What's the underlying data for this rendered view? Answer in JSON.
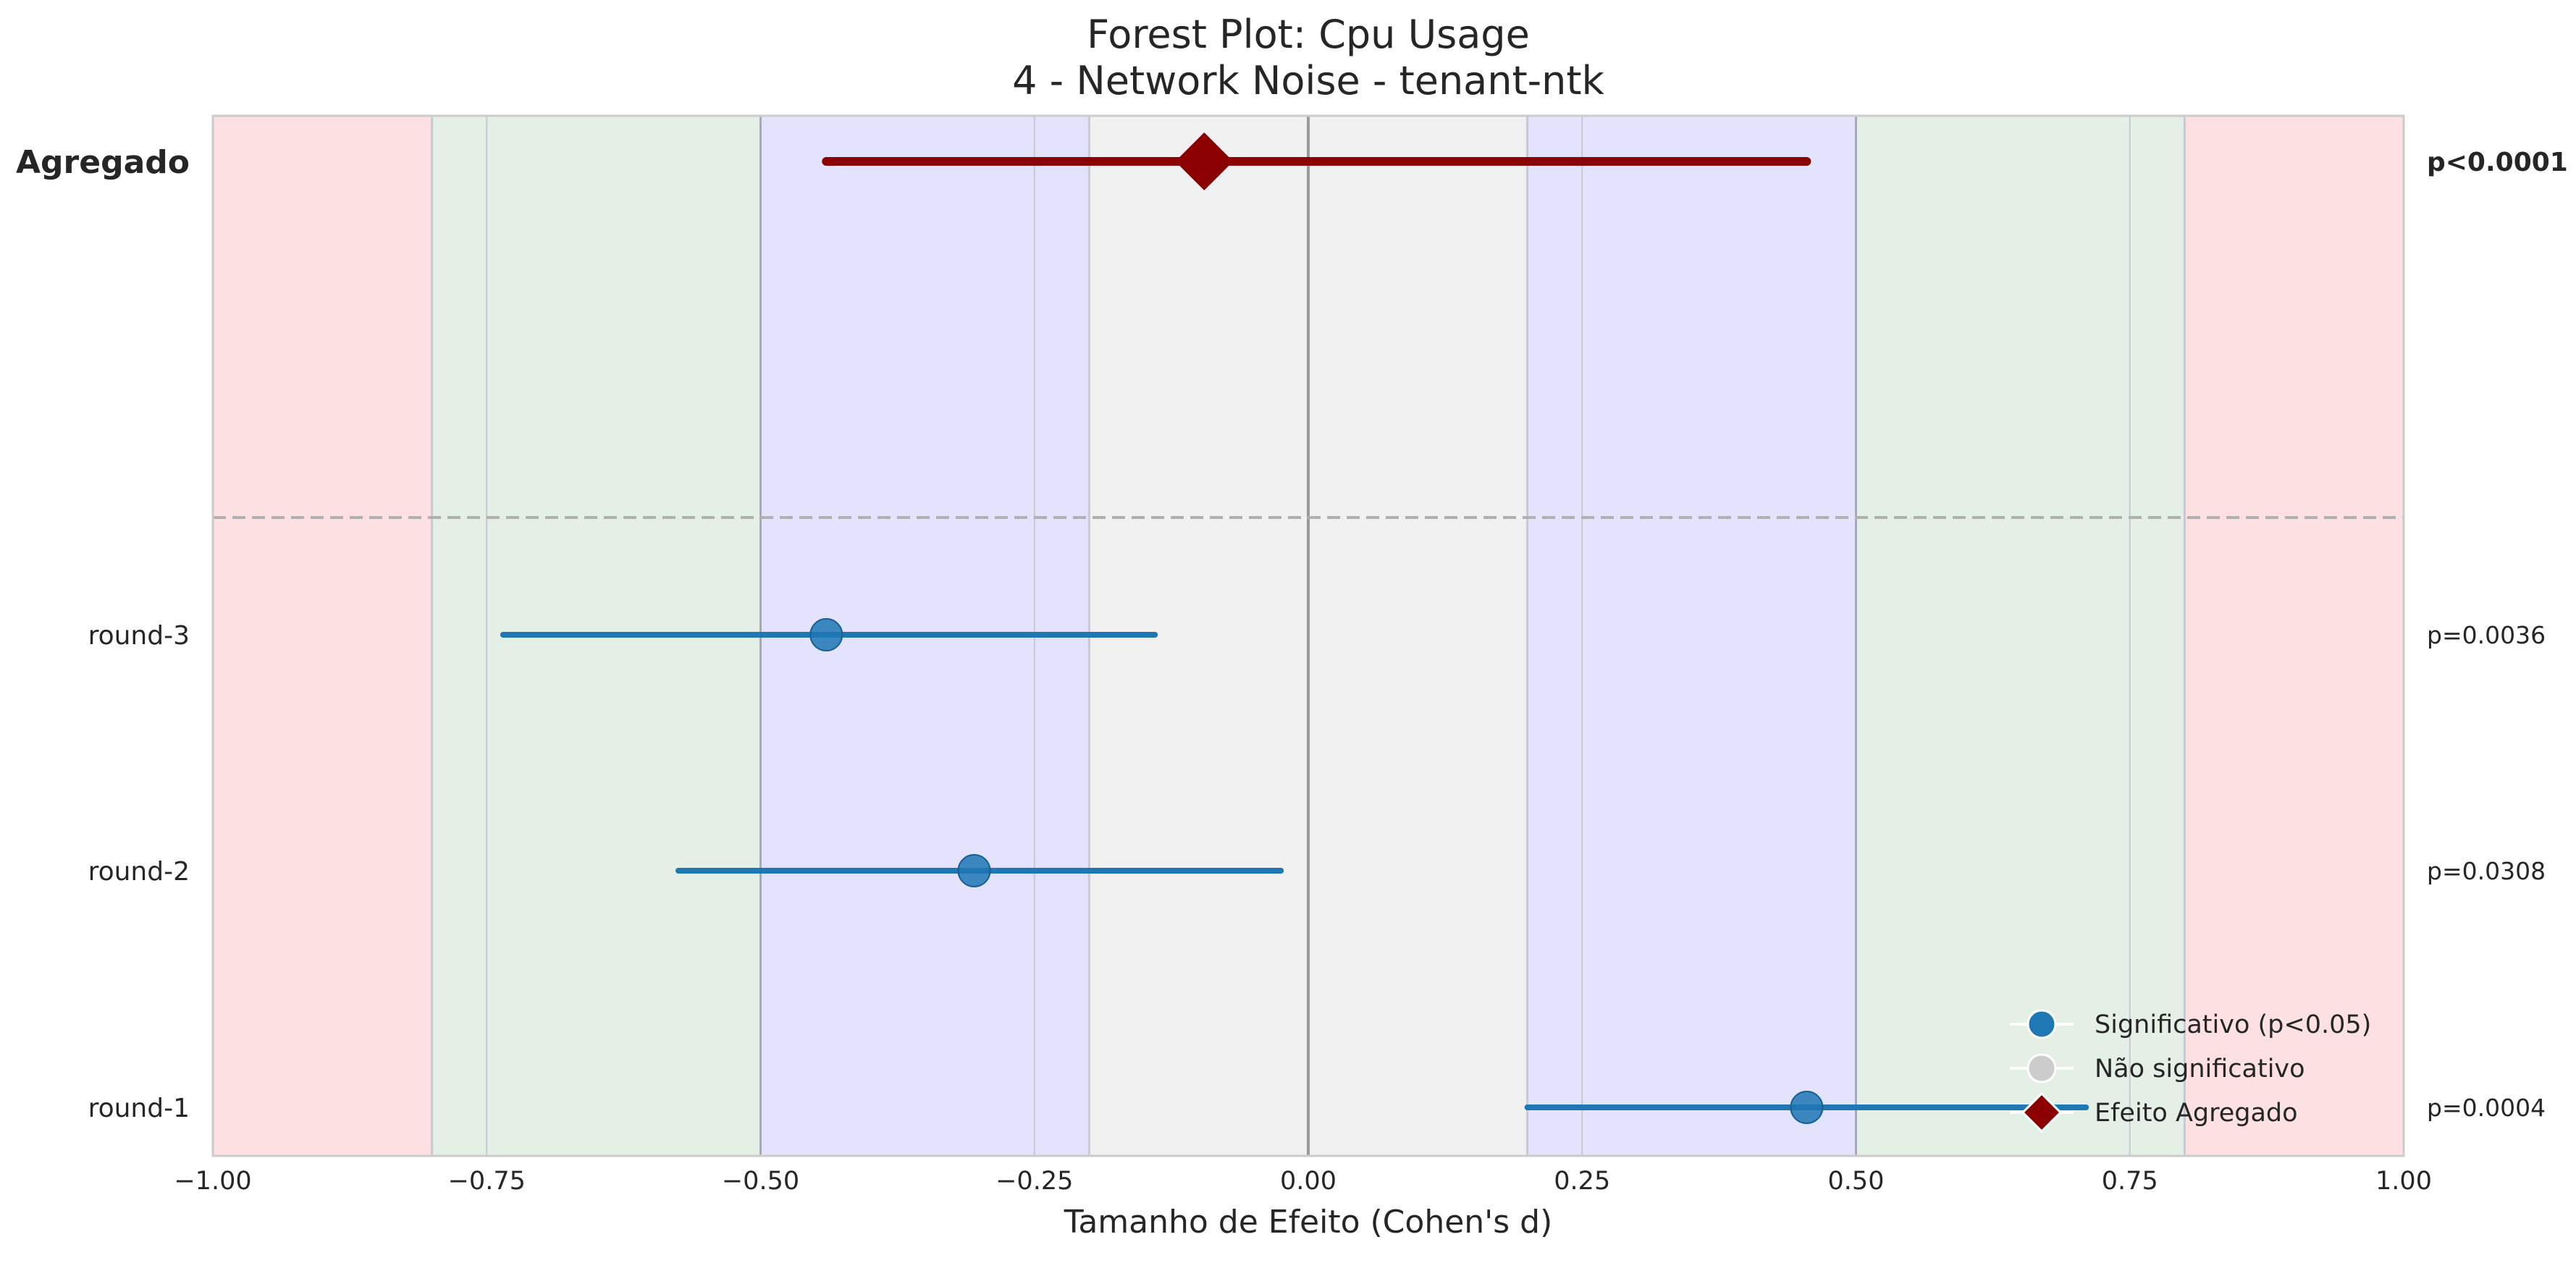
{
  "chart_data": {
    "type": "forest",
    "title": "Forest Plot: Cpu Usage",
    "subtitle": "4 - Network Noise - tenant-ntk",
    "xlabel": "Tamanho de Efeito (Cohen's d)",
    "xlim": [
      -1.0,
      1.0
    ],
    "xticks": [
      -1.0,
      -0.75,
      -0.5,
      -0.25,
      0.0,
      0.25,
      0.5,
      0.75,
      1.0
    ],
    "xtick_labels": [
      "−1.00",
      "−0.75",
      "−0.50",
      "−0.25",
      "0.00",
      "0.25",
      "0.50",
      "0.75",
      "1.00"
    ],
    "effect_bands": [
      {
        "from": -1.0,
        "to": -0.8,
        "color": "#fde0e2"
      },
      {
        "from": -0.8,
        "to": -0.5,
        "color": "#e4f0e5"
      },
      {
        "from": -0.5,
        "to": -0.2,
        "color": "#e3e3fe"
      },
      {
        "from": -0.2,
        "to": 0.2,
        "color": "#f1f1f1"
      },
      {
        "from": 0.2,
        "to": 0.5,
        "color": "#e3e3fe"
      },
      {
        "from": 0.5,
        "to": 0.8,
        "color": "#e4f0e5"
      },
      {
        "from": 0.8,
        "to": 1.0,
        "color": "#fde0e2"
      }
    ],
    "reference_lines": [
      -0.8,
      -0.5,
      -0.2,
      0.2,
      0.5,
      0.8
    ],
    "aggregate": {
      "label": "Agregado",
      "estimate": -0.095,
      "ci": [
        -0.44,
        0.455
      ],
      "p_label": "p<0.0001",
      "color": "#8b0000"
    },
    "rounds": [
      {
        "label": "round-3",
        "estimate": -0.44,
        "ci": [
          -0.735,
          -0.14
        ],
        "p_label": "p=0.0036",
        "significant": true
      },
      {
        "label": "round-2",
        "estimate": -0.305,
        "ci": [
          -0.575,
          -0.025
        ],
        "p_label": "p=0.0308",
        "significant": true
      },
      {
        "label": "round-1",
        "estimate": 0.455,
        "ci": [
          0.2,
          0.71
        ],
        "p_label": "p=0.0004",
        "significant": true
      }
    ],
    "legend": {
      "position": "lower-right",
      "entries": [
        {
          "label": "Significativo (p<0.05)",
          "marker": "circle",
          "color": "#1f77b4"
        },
        {
          "label": "Não significativo",
          "marker": "circle",
          "color": "#cccccc"
        },
        {
          "label": "Efeito Agregado",
          "marker": "diamond",
          "color": "#8b0000"
        }
      ]
    },
    "colors": {
      "significant": "#1f77b4",
      "not_significant": "#cccccc",
      "aggregate": "#8b0000"
    }
  }
}
